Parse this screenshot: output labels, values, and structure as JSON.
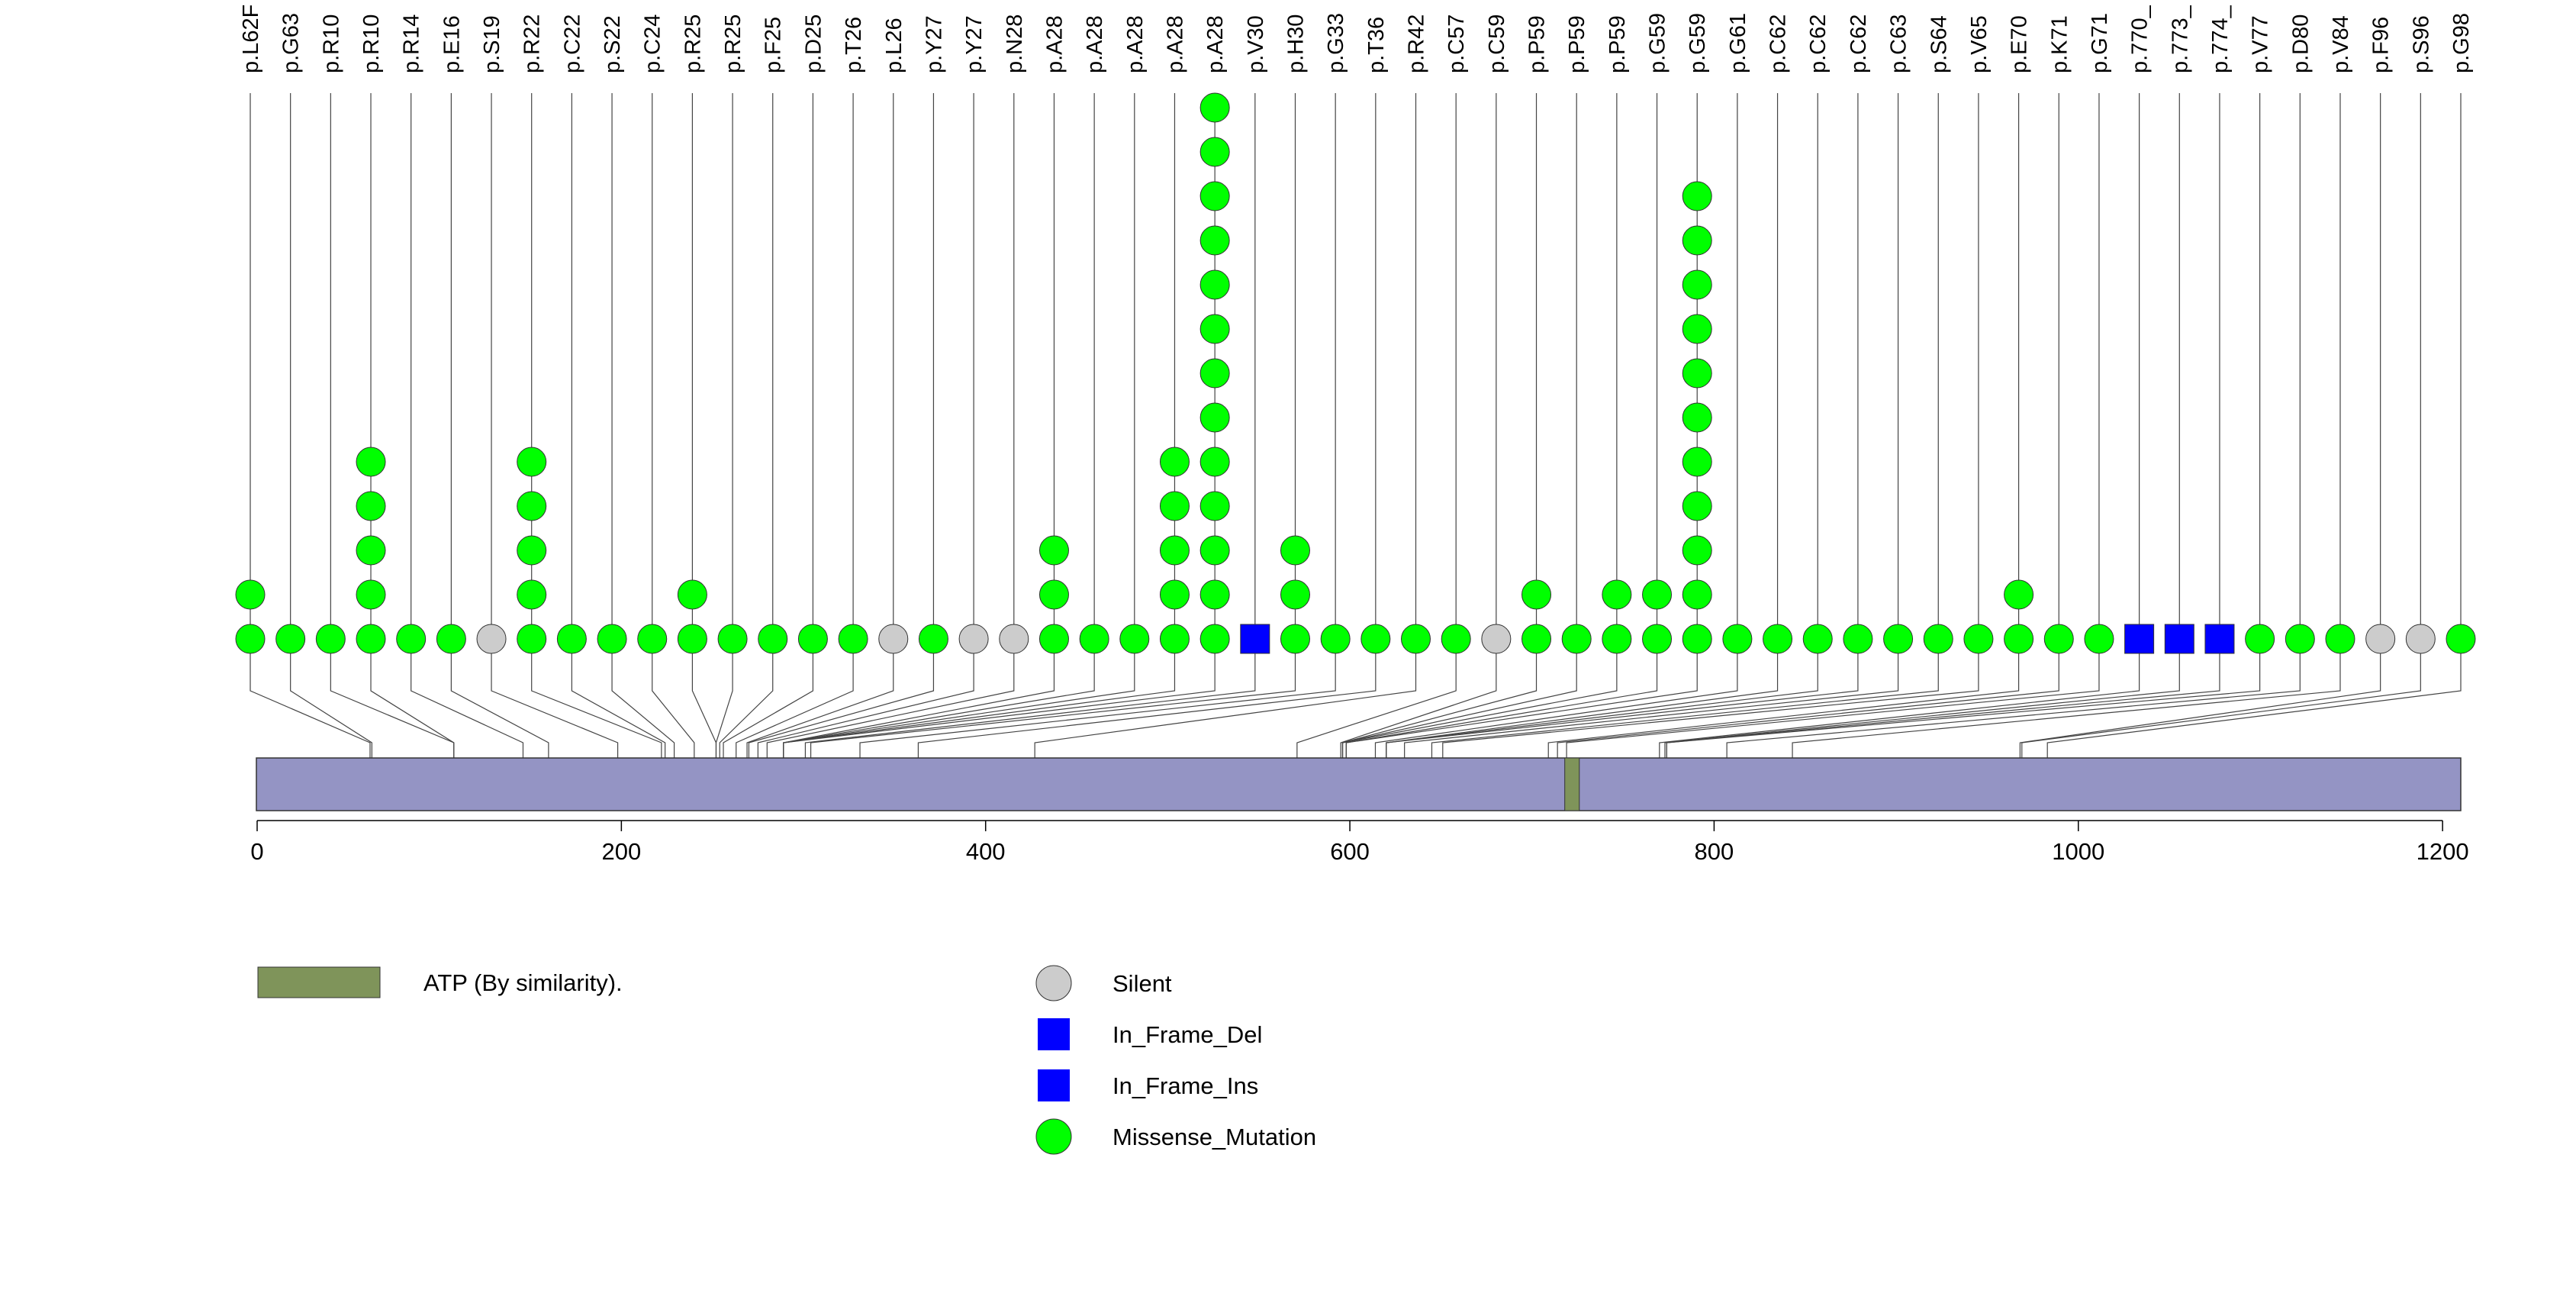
{
  "chart_data": {
    "type": "lollipop",
    "protein_length": 1210,
    "xlim": [
      0,
      1210
    ],
    "x_ticks": [
      0,
      200,
      400,
      600,
      800,
      1000,
      1200
    ],
    "domain": {
      "label": "ATP (By similarity).",
      "start": 718,
      "end": 726,
      "color": "#7f945a"
    },
    "protein_color": "#9494c4",
    "legend": [
      {
        "label": "Silent",
        "shape": "circle",
        "color": "#cccccc"
      },
      {
        "label": "In_Frame_Del",
        "shape": "square",
        "color": "#0000ff"
      },
      {
        "label": "In_Frame_Ins",
        "shape": "square",
        "color": "#0000ff"
      },
      {
        "label": "Missense_Mutation",
        "shape": "circle",
        "color": "#00ff00"
      }
    ],
    "mutations": [
      {
        "label": "p.L62F",
        "position": 62,
        "count": 2,
        "type": "Missense_Mutation"
      },
      {
        "label": "p.G63",
        "position": 63,
        "count": 1,
        "type": "Missense_Mutation"
      },
      {
        "label": "p.R10",
        "position": 108,
        "count": 1,
        "type": "Missense_Mutation"
      },
      {
        "label": "p.R10",
        "position": 108,
        "count": 5,
        "type": "Missense_Mutation"
      },
      {
        "label": "p.R14",
        "position": 146,
        "count": 1,
        "type": "Missense_Mutation"
      },
      {
        "label": "p.E16",
        "position": 160,
        "count": 1,
        "type": "Missense_Mutation"
      },
      {
        "label": "p.S19",
        "position": 198,
        "count": 1,
        "type": "Silent"
      },
      {
        "label": "p.R22",
        "position": 222,
        "count": 5,
        "type": "Missense_Mutation"
      },
      {
        "label": "p.C22",
        "position": 224,
        "count": 1,
        "type": "Missense_Mutation"
      },
      {
        "label": "p.S22",
        "position": 229,
        "count": 1,
        "type": "Missense_Mutation"
      },
      {
        "label": "p.C24",
        "position": 240,
        "count": 1,
        "type": "Missense_Mutation"
      },
      {
        "label": "p.R25",
        "position": 252,
        "count": 2,
        "type": "Missense_Mutation"
      },
      {
        "label": "p.R25",
        "position": 252,
        "count": 1,
        "type": "Missense_Mutation"
      },
      {
        "label": "p.F25",
        "position": 254,
        "count": 1,
        "type": "Missense_Mutation"
      },
      {
        "label": "p.D25",
        "position": 256,
        "count": 1,
        "type": "Missense_Mutation"
      },
      {
        "label": "p.T26",
        "position": 263,
        "count": 1,
        "type": "Missense_Mutation"
      },
      {
        "label": "p.L26",
        "position": 269,
        "count": 1,
        "type": "Silent"
      },
      {
        "label": "p.Y27",
        "position": 270,
        "count": 1,
        "type": "Missense_Mutation"
      },
      {
        "label": "p.Y27",
        "position": 275,
        "count": 1,
        "type": "Silent"
      },
      {
        "label": "p.N28",
        "position": 280,
        "count": 1,
        "type": "Silent"
      },
      {
        "label": "p.A28",
        "position": 289,
        "count": 3,
        "type": "Missense_Mutation"
      },
      {
        "label": "p.A28",
        "position": 289,
        "count": 1,
        "type": "Missense_Mutation"
      },
      {
        "label": "p.A28",
        "position": 289,
        "count": 1,
        "type": "Missense_Mutation"
      },
      {
        "label": "p.A28",
        "position": 289,
        "count": 5,
        "type": "Missense_Mutation"
      },
      {
        "label": "p.A28",
        "position": 289,
        "count": 13,
        "type": "Missense_Mutation"
      },
      {
        "label": "p.V30",
        "position": 301,
        "count": 1,
        "type": "In_Frame_Del"
      },
      {
        "label": "p.H30",
        "position": 304,
        "count": 3,
        "type": "Missense_Mutation"
      },
      {
        "label": "p.G33",
        "position": 331,
        "count": 1,
        "type": "Missense_Mutation"
      },
      {
        "label": "p.T36",
        "position": 363,
        "count": 1,
        "type": "Missense_Mutation"
      },
      {
        "label": "p.R42",
        "position": 427,
        "count": 1,
        "type": "Missense_Mutation"
      },
      {
        "label": "p.C57",
        "position": 571,
        "count": 1,
        "type": "Missense_Mutation"
      },
      {
        "label": "p.C59",
        "position": 595,
        "count": 1,
        "type": "Silent"
      },
      {
        "label": "p.P59",
        "position": 596,
        "count": 2,
        "type": "Missense_Mutation"
      },
      {
        "label": "p.P59",
        "position": 596,
        "count": 1,
        "type": "Missense_Mutation"
      },
      {
        "label": "p.P59",
        "position": 596,
        "count": 2,
        "type": "Missense_Mutation"
      },
      {
        "label": "p.G59",
        "position": 598,
        "count": 2,
        "type": "Missense_Mutation"
      },
      {
        "label": "p.G59",
        "position": 598,
        "count": 11,
        "type": "Missense_Mutation"
      },
      {
        "label": "p.G61",
        "position": 614,
        "count": 1,
        "type": "Missense_Mutation"
      },
      {
        "label": "p.C62",
        "position": 620,
        "count": 1,
        "type": "Missense_Mutation"
      },
      {
        "label": "p.C62",
        "position": 620,
        "count": 1,
        "type": "Missense_Mutation"
      },
      {
        "label": "p.C62",
        "position": 620,
        "count": 1,
        "type": "Missense_Mutation"
      },
      {
        "label": "p.C63",
        "position": 630,
        "count": 1,
        "type": "Missense_Mutation"
      },
      {
        "label": "p.S64",
        "position": 645,
        "count": 1,
        "type": "Missense_Mutation"
      },
      {
        "label": "p.V65",
        "position": 651,
        "count": 1,
        "type": "Missense_Mutation"
      },
      {
        "label": "p.E70",
        "position": 709,
        "count": 2,
        "type": "Missense_Mutation"
      },
      {
        "label": "p.K71",
        "position": 714,
        "count": 1,
        "type": "Missense_Mutation"
      },
      {
        "label": "p.G71",
        "position": 719,
        "count": 1,
        "type": "Missense_Mutation"
      },
      {
        "label": "p.770_",
        "position": 770,
        "count": 1,
        "type": "In_Frame_Ins"
      },
      {
        "label": "p.773_",
        "position": 773,
        "count": 1,
        "type": "In_Frame_Ins"
      },
      {
        "label": "p.774_",
        "position": 774,
        "count": 1,
        "type": "In_Frame_Ins"
      },
      {
        "label": "p.V77",
        "position": 774,
        "count": 1,
        "type": "Missense_Mutation"
      },
      {
        "label": "p.D80",
        "position": 807,
        "count": 1,
        "type": "Missense_Mutation"
      },
      {
        "label": "p.V84",
        "position": 843,
        "count": 1,
        "type": "Missense_Mutation"
      },
      {
        "label": "p.F96",
        "position": 968,
        "count": 1,
        "type": "Silent"
      },
      {
        "label": "p.S96",
        "position": 969,
        "count": 1,
        "type": "Silent"
      },
      {
        "label": "p.G98",
        "position": 983,
        "count": 1,
        "type": "Missense_Mutation"
      }
    ]
  }
}
